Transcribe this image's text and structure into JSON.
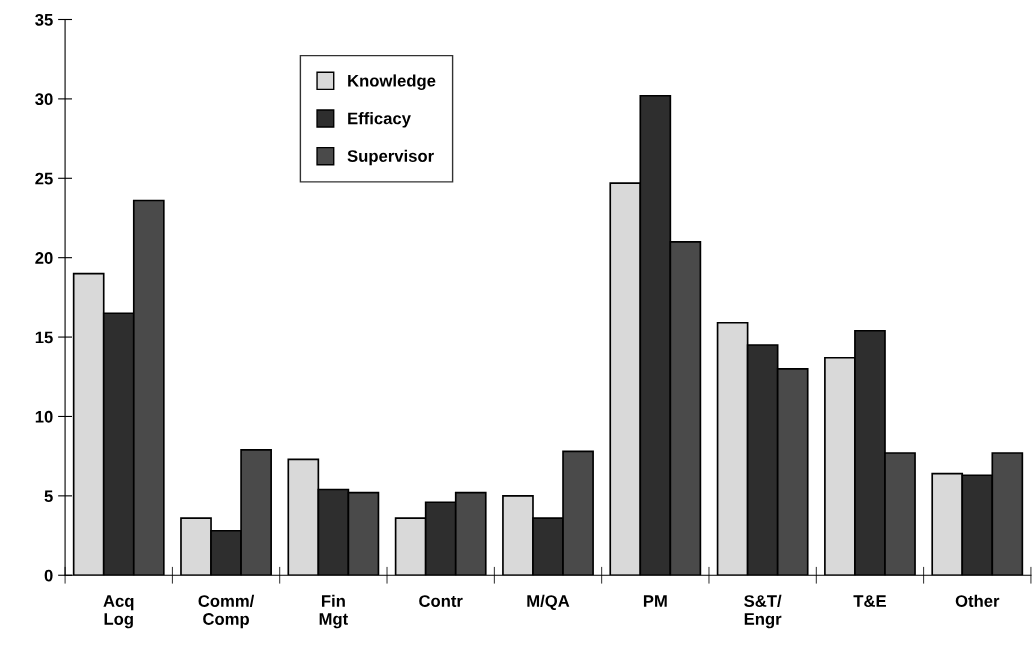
{
  "chart_data": {
    "type": "bar",
    "categories": [
      "Acq\nLog",
      "Comm/\nComp",
      "Fin\nMgt",
      "Contr",
      "M/QA",
      "PM",
      "S&T/\nEngr",
      "T&E",
      "Other"
    ],
    "series": [
      {
        "name": "Knowledge",
        "color": "#d9d9d9",
        "values": [
          19.0,
          3.6,
          7.3,
          3.6,
          5.0,
          24.7,
          15.9,
          13.7,
          6.4
        ]
      },
      {
        "name": "Efficacy",
        "color": "#2e2e2e",
        "values": [
          16.5,
          2.8,
          5.4,
          4.6,
          3.6,
          30.2,
          14.5,
          15.4,
          6.3
        ]
      },
      {
        "name": "Supervisor",
        "color": "#4a4a4a",
        "values": [
          23.6,
          7.9,
          5.2,
          5.2,
          7.8,
          21.0,
          13.0,
          7.7,
          7.7
        ]
      }
    ],
    "ylim": [
      0,
      35
    ],
    "yticks": [
      0,
      5,
      10,
      15,
      20,
      25,
      30,
      35
    ],
    "grid": false,
    "legend": "top left"
  }
}
